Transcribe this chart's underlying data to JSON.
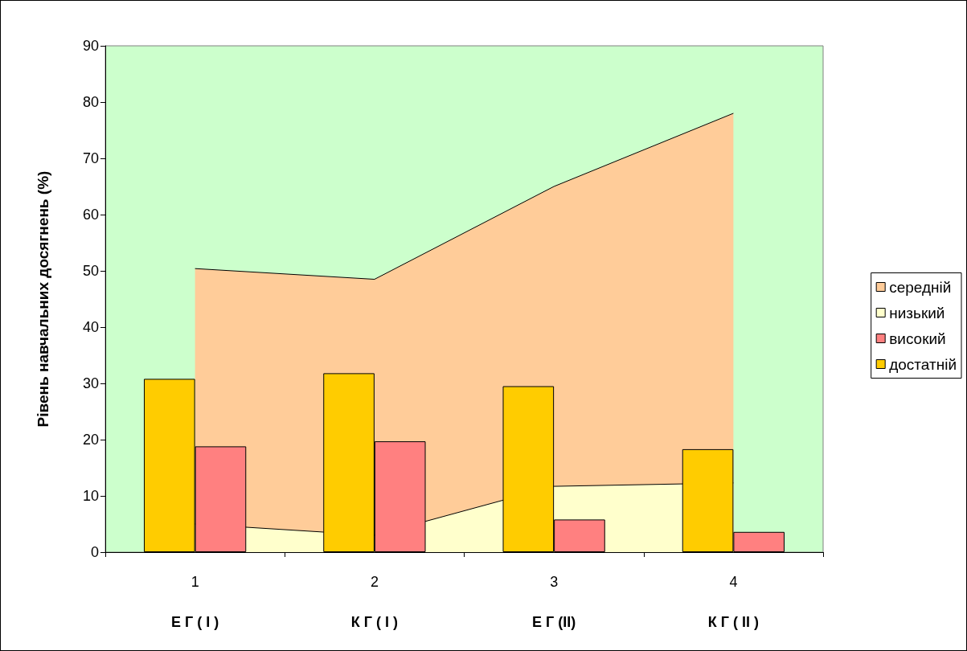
{
  "chart_data": {
    "type": "bar",
    "ylabel": "Рівень навчальних досягнень (%)",
    "categories": [
      "1",
      "2",
      "3",
      "4"
    ],
    "series": [
      {
        "name": "середній",
        "type": "area",
        "color": "#ffcc99",
        "values": [
          50.4,
          48.5,
          65,
          78
        ]
      },
      {
        "name": "низький",
        "type": "area",
        "color": "#ffffcc",
        "values": [
          5,
          3,
          11.7,
          12.3
        ]
      },
      {
        "name": "високий",
        "color": "#ff8080",
        "values": [
          18.8,
          19.7,
          5.8,
          3.6
        ]
      },
      {
        "name": "достатній",
        "color": "#ffcc00",
        "values": [
          30.8,
          31.8,
          29.5,
          18.3
        ]
      }
    ],
    "annotations": [
      "Е Г ( І )",
      "К Г ( І )",
      "Е Г (ІІ)",
      "К Г ( ІІ )"
    ],
    "ylim": [
      0,
      90
    ],
    "yticks": [
      0,
      10,
      20,
      30,
      40,
      50,
      60,
      70,
      80,
      90
    ],
    "grid": false,
    "legend": "right",
    "marker": "none"
  }
}
